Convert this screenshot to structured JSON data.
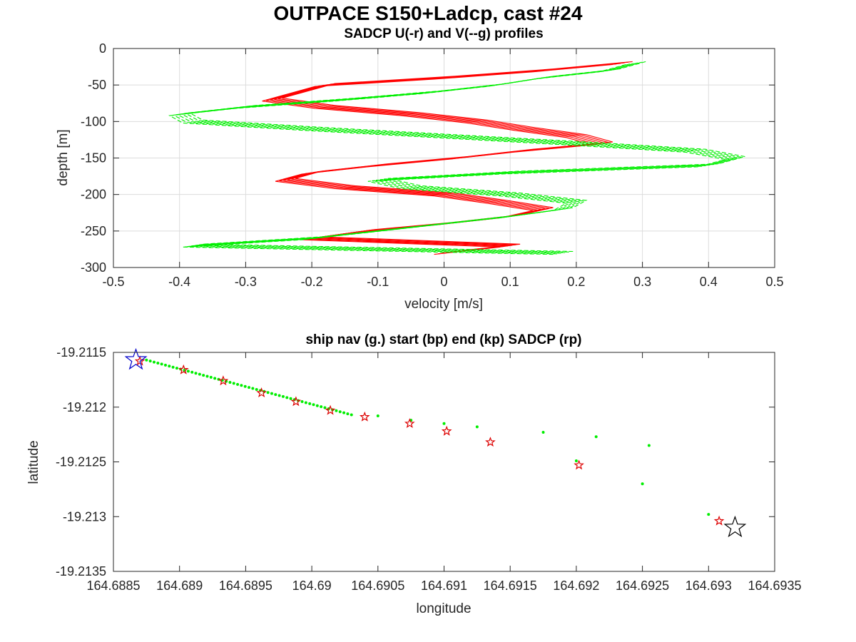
{
  "figure": {
    "title": "OUTPACE S150+Ladcp, cast #24"
  },
  "chart_data": [
    {
      "type": "line",
      "title": "SADCP U(-r) and V(--g) profiles",
      "xlabel": "velocity [m/s]",
      "ylabel": "depth [m]",
      "xlim": [
        -0.5,
        0.5
      ],
      "ylim": [
        -300,
        0
      ],
      "xticks": [
        -0.5,
        -0.4,
        -0.3,
        -0.2,
        -0.1,
        0,
        0.1,
        0.2,
        0.3,
        0.4,
        0.5
      ],
      "xtick_labels": [
        "-0.5",
        "-0.4",
        "-0.3",
        "-0.2",
        "-0.1",
        "0",
        "0.1",
        "0.2",
        "0.3",
        "0.4",
        "0.5"
      ],
      "yticks": [
        0,
        -50,
        -100,
        -150,
        -200,
        -250,
        -300
      ],
      "ytick_labels": [
        "0",
        "-50",
        "-100",
        "-150",
        "-200",
        "-250",
        "-300"
      ],
      "grid": true,
      "colors": {
        "U": "#ff0000",
        "V": "#00ee00"
      },
      "depth": [
        -20,
        -30,
        -40,
        -50,
        -60,
        -70,
        -80,
        -90,
        -100,
        -110,
        -120,
        -130,
        -140,
        -150,
        -160,
        -170,
        -180,
        -190,
        -200,
        -210,
        -220,
        -230,
        -240,
        -250,
        -260,
        -270,
        -280
      ],
      "series": [
        {
          "component": "U",
          "style": "solid",
          "u_values": [
            0.27,
            0.15,
            0.0,
            -0.18,
            -0.22,
            -0.26,
            -0.18,
            -0.05,
            0.05,
            0.12,
            0.2,
            0.24,
            0.12,
            0.02,
            -0.1,
            -0.2,
            -0.24,
            -0.15,
            0.0,
            0.08,
            0.15,
            0.1,
            0.0,
            -0.12,
            -0.2,
            0.1,
            0.0
          ]
        },
        {
          "component": "V",
          "style": "dashed",
          "v_values": [
            0.29,
            0.25,
            0.15,
            0.08,
            -0.02,
            -0.15,
            -0.3,
            -0.4,
            -0.38,
            -0.2,
            0.0,
            0.2,
            0.38,
            0.44,
            0.4,
            0.1,
            -0.1,
            -0.05,
            0.1,
            0.2,
            0.18,
            0.1,
            0.0,
            -0.1,
            -0.2,
            -0.38,
            0.18
          ]
        }
      ]
    },
    {
      "type": "scatter",
      "title": "ship nav (g.) start (bp) end (kp) SADCP (rp)",
      "xlabel": "longitude",
      "ylabel": "latitude",
      "xlim": [
        164.6885,
        164.6935
      ],
      "ylim": [
        -19.2135,
        -19.2115
      ],
      "xticks": [
        164.6885,
        164.689,
        164.6895,
        164.69,
        164.6905,
        164.691,
        164.6915,
        164.692,
        164.6925,
        164.693,
        164.6935
      ],
      "xtick_labels": [
        "164.6885",
        "164.689",
        "164.6895",
        "164.69",
        "164.6905",
        "164.691",
        "164.6915",
        "164.692",
        "164.6925",
        "164.693",
        "164.6935"
      ],
      "yticks": [
        -19.2115,
        -19.212,
        -19.2125,
        -19.213,
        -19.2135
      ],
      "ytick_labels": [
        "-19.2115",
        "-19.212",
        "-19.2125",
        "-19.213",
        "-19.2135"
      ],
      "grid": false,
      "colors": {
        "nav": "#00ee00",
        "start": "#0000cc",
        "end": "#000000",
        "sadcp": "#dd0000"
      },
      "nav_segment": {
        "x_start": 164.68875,
        "y_start": -19.21157,
        "x_end": 164.6903,
        "y_end": -19.21207,
        "count": 55
      },
      "nav_points": [
        [
          164.6905,
          -19.21208
        ],
        [
          164.69075,
          -19.21212
        ],
        [
          164.691,
          -19.21215
        ],
        [
          164.69125,
          -19.21218
        ],
        [
          164.69175,
          -19.21223
        ],
        [
          164.69215,
          -19.21227
        ],
        [
          164.69255,
          -19.21235
        ],
        [
          164.692,
          -19.21249
        ],
        [
          164.6925,
          -19.2127
        ],
        [
          164.693,
          -19.21298
        ]
      ],
      "start_point": [
        164.68867,
        -19.21157
      ],
      "end_point": [
        164.6932,
        -19.2131
      ],
      "sadcp_points": [
        [
          164.6887,
          -19.21158
        ],
        [
          164.68903,
          -19.21166
        ],
        [
          164.68933,
          -19.21176
        ],
        [
          164.68962,
          -19.21187
        ],
        [
          164.68988,
          -19.21195
        ],
        [
          164.69014,
          -19.21203
        ],
        [
          164.6904,
          -19.21209
        ],
        [
          164.69074,
          -19.21215
        ],
        [
          164.69102,
          -19.21222
        ],
        [
          164.69135,
          -19.21232
        ],
        [
          164.69202,
          -19.21253
        ],
        [
          164.69308,
          -19.21304
        ]
      ]
    }
  ]
}
